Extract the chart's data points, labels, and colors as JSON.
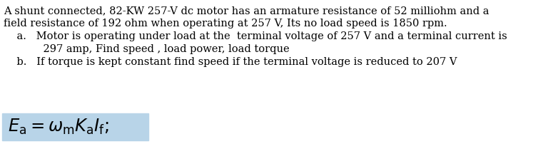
{
  "bg_color": "#ffffff",
  "text_color": "#000000",
  "line1": "A shunt connected, 82-KW 257-V dc motor has an armature resistance of 52 milliohm and a",
  "line2": "field resistance of 192 ohm when operating at 257 V, Its no load speed is 1850 rpm.",
  "item_a_line1": "    a.   Motor is operating under load at the  terminal voltage of 257 V and a terminal current is",
  "item_a_line2": "            297 amp, Find speed , load power, load torque",
  "item_b": "    b.   If torque is kept constant find speed if the terminal voltage is reduced to 207 V",
  "formula_box_color": "#b8d4e8",
  "font_size": 10.5,
  "formula_font_size": 17.5,
  "font_family": "serif"
}
